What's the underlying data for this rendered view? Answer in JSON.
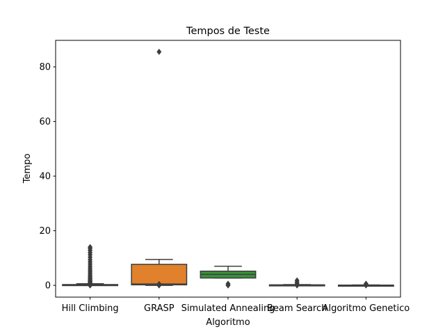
{
  "chart_data": {
    "type": "box",
    "title": "Tempos de Teste",
    "xlabel": "Algoritmo",
    "ylabel": "Tempo",
    "categories": [
      "Hill Climbing",
      "GRASP",
      "Simulated Annealing",
      "Beam Search",
      "Algoritmo Genetico"
    ],
    "ylim": [
      -4.3,
      89.7
    ],
    "yticks": [
      0,
      20,
      40,
      60,
      80
    ],
    "grid": false,
    "legend": "none",
    "colors": [
      "#3274a1",
      "#e1812c",
      "#3a923a",
      "#c03d3e",
      "#9372b2"
    ],
    "edge_color": "#3d3d3d",
    "boxes": [
      {
        "category": "Hill Climbing",
        "whisker_low": 0.0,
        "q1": 0.05,
        "median": 0.15,
        "q3": 0.3,
        "whisker_high": 0.6,
        "outliers": [
          0.0,
          0.1,
          0.8,
          1.0,
          1.3,
          1.6,
          2.0,
          2.4,
          2.8,
          3.3,
          3.8,
          4.4,
          5.0,
          5.6,
          6.3,
          7.0,
          7.8,
          8.6,
          9.4,
          10.3,
          11.2,
          12.0,
          12.8,
          13.5,
          14.0
        ]
      },
      {
        "category": "GRASP",
        "whisker_low": 0.0,
        "q1": 0.2,
        "median": 0.5,
        "q3": 7.7,
        "whisker_high": 9.5,
        "outliers": [
          0.0,
          0.2,
          0.5,
          85.5
        ]
      },
      {
        "category": "Simulated Annealing",
        "whisker_low": 2.7,
        "q1": 2.7,
        "median": 4.0,
        "q3": 5.2,
        "whisker_high": 7.0,
        "outliers": [
          0.0,
          0.3,
          0.6
        ]
      },
      {
        "category": "Beam Search",
        "whisker_low": 0.0,
        "q1": 0.05,
        "median": 0.1,
        "q3": 0.2,
        "whisker_high": 0.3,
        "outliers": [
          0.0,
          0.3,
          0.7,
          1.2,
          1.8
        ]
      },
      {
        "category": "Algoritmo Genetico",
        "whisker_low": 0.0,
        "q1": 0.02,
        "median": 0.05,
        "q3": 0.1,
        "whisker_high": 0.15,
        "outliers": [
          0.0,
          0.3,
          0.6
        ]
      }
    ]
  }
}
